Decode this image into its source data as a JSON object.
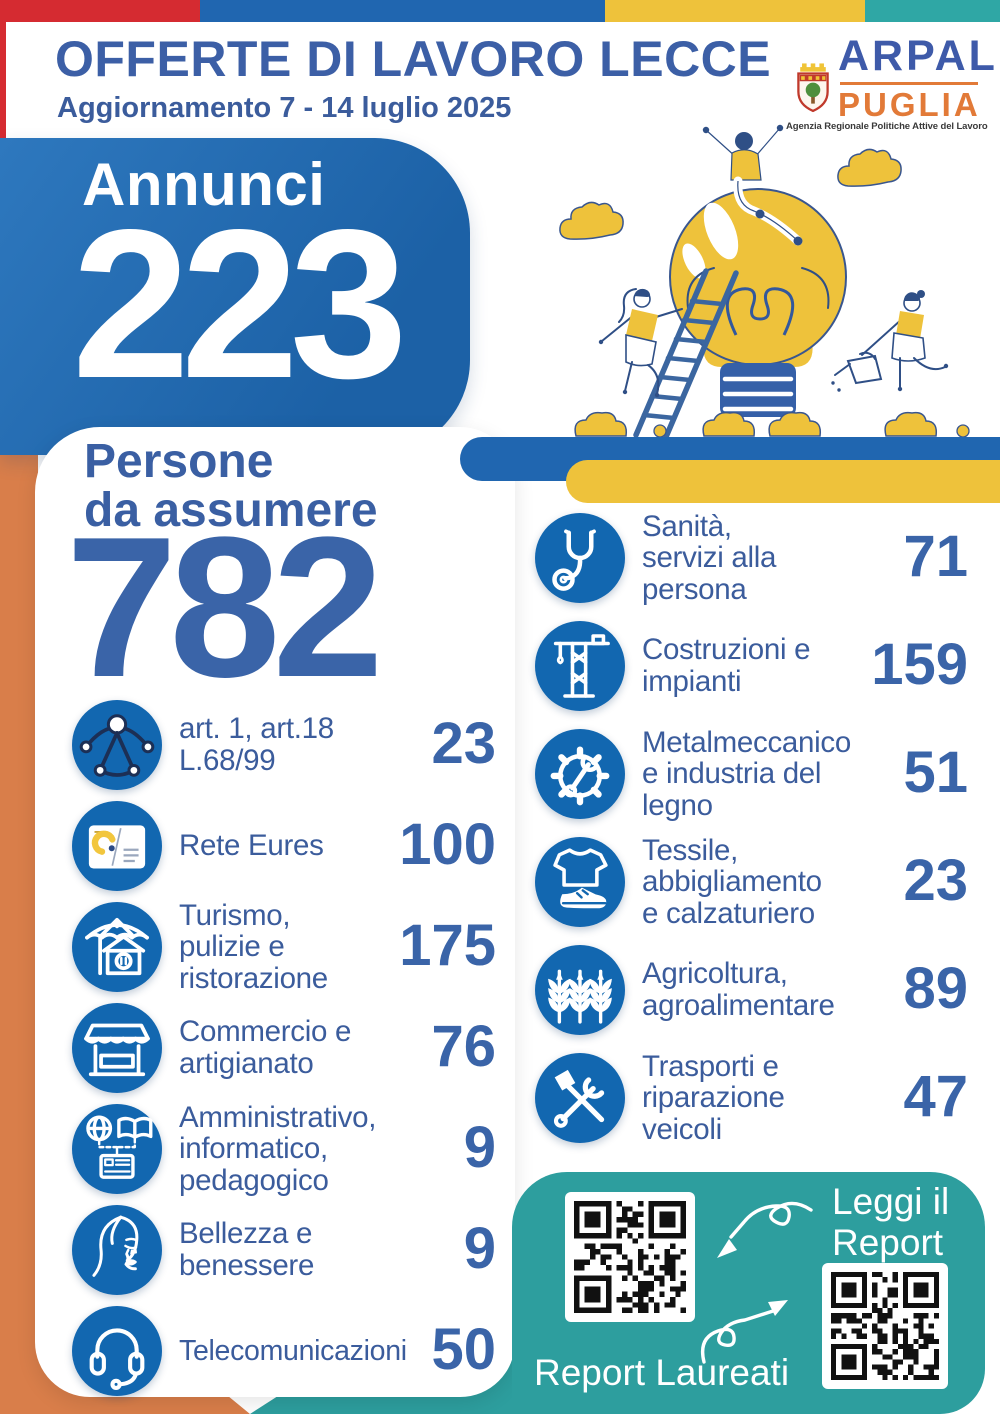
{
  "header": {
    "title": "OFFERTE DI LAVORO LECCE",
    "subtitle": "Aggiornamento 7 - 14 luglio 2025",
    "logo": {
      "name_top": "ARPAL",
      "name_bottom": "PUGLIA",
      "tagline": "Agenzia Regionale Politiche Attive del Lavoro"
    }
  },
  "annunci": {
    "label": "Annunci",
    "value": "223"
  },
  "persone": {
    "label": "Persone\nda assumere",
    "value": "782"
  },
  "left_categories": [
    {
      "icon": "disability-network-icon",
      "label": "art. 1, art.18\nL.68/99",
      "value": "23"
    },
    {
      "icon": "eures-logo-icon",
      "label": "Rete Eures",
      "value": "100"
    },
    {
      "icon": "umbrella-house-icon",
      "label": "Turismo,\npulizie e\nristorazione",
      "value": "175"
    },
    {
      "icon": "market-stall-icon",
      "label": "Commercio e\nartigianato",
      "value": "76"
    },
    {
      "icon": "globe-book-card-icon",
      "label": "Amministrativo,\ninformatico,\npedagogico",
      "value": "9"
    },
    {
      "icon": "female-face-icon",
      "label": "Bellezza e\nbenessere",
      "value": "9"
    },
    {
      "icon": "headset-icon",
      "label": "Telecomunicazioni",
      "value": "50"
    }
  ],
  "right_categories": [
    {
      "icon": "stethoscope-icon",
      "label": "Sanità,\nservizi alla\npersona",
      "value": "71"
    },
    {
      "icon": "crane-icon",
      "label": "Costruzioni e\nimpianti",
      "value": "159"
    },
    {
      "icon": "gear-wrench-icon",
      "label": "Metalmeccanico\ne industria del\nlegno",
      "value": "51"
    },
    {
      "icon": "tshirt-sneaker-icon",
      "label": "Tessile,\nabbigliamento\ne calzaturiero",
      "value": "23"
    },
    {
      "icon": "wheat-icon",
      "label": "Agricoltura,\nagroalimentare",
      "value": "89"
    },
    {
      "icon": "hammer-wrench-icon",
      "label": "Trasporti e\nriparazione\nveicoli",
      "value": "47"
    }
  ],
  "report_box": {
    "leggi": "Leggi il\nReport",
    "laureati": "Report Laureati"
  },
  "colors": {
    "brand_blue": "#2066b0",
    "dark_blue_text": "#3a5fa3",
    "icon_circle_blue": "#1267b0",
    "red": "#d52b31",
    "yellow": "#eec23b",
    "teal": "#2d9e9e",
    "orange": "#d97e4a",
    "logo_orange": "#e27a38"
  }
}
